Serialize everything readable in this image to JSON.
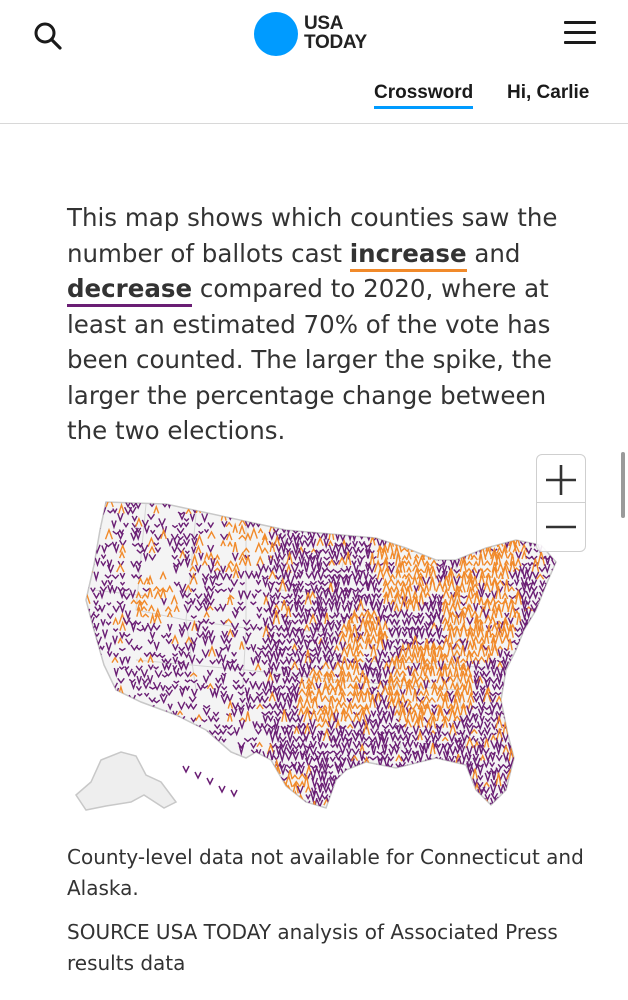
{
  "header": {
    "logo": {
      "line1": "USA",
      "line2": "TODAY",
      "dot_color": "#009bff"
    },
    "search_icon": "search-icon",
    "menu_icon": "hamburger-menu-icon",
    "nav": {
      "crossword": "Crossword",
      "greeting": "Hi, Carlie"
    }
  },
  "article": {
    "intro_part1": "This map shows which counties saw the number of ballots cast ",
    "increase": "increase",
    "intro_part2": " and ",
    "decrease": "decrease",
    "intro_part3": " compared to 2020, where at least an estimated 70% of the vote has been counted. The larger the spike, the larger the percentage change between the two elections.",
    "increase_color": "#f18a2a",
    "decrease_color": "#6a1e74"
  },
  "map": {
    "zoom_in": "+",
    "zoom_out": "−",
    "note": "County-level data not available for Connecticut and Alaska.",
    "source": "SOURCE USA TODAY analysis of Associated Press results data"
  }
}
